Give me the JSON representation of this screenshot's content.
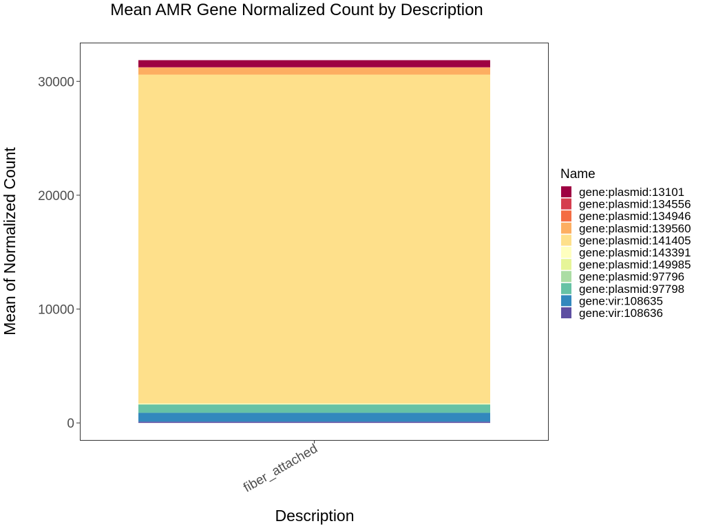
{
  "chart_data": {
    "type": "bar",
    "stacked": true,
    "title": "Mean AMR Gene Normalized Count by Description",
    "xlabel": "Description",
    "ylabel": "Mean of Normalized Count",
    "categories": [
      "fiber_attached"
    ],
    "ylim": [
      -1500,
      33400
    ],
    "y_ticks": [
      0,
      10000,
      20000,
      30000
    ],
    "grid": false,
    "legend": {
      "title": "Name",
      "position": "right"
    },
    "series": [
      {
        "name": "gene:plasmid:13101",
        "color": "#9E0142",
        "values": [
          620
        ]
      },
      {
        "name": "gene:plasmid:134556",
        "color": "#D53E4F",
        "values": [
          15
        ]
      },
      {
        "name": "gene:plasmid:134946",
        "color": "#F46D43",
        "values": [
          15
        ]
      },
      {
        "name": "gene:plasmid:139560",
        "color": "#FDAE61",
        "values": [
          620
        ]
      },
      {
        "name": "gene:plasmid:141405",
        "color": "#FEE08B",
        "values": [
          28880
        ]
      },
      {
        "name": "gene:plasmid:143391",
        "color": "#FFFFBF",
        "values": [
          60
        ]
      },
      {
        "name": "gene:plasmid:149985",
        "color": "#E6F598",
        "values": [
          20
        ]
      },
      {
        "name": "gene:plasmid:97796",
        "color": "#ABDDA4",
        "values": [
          20
        ]
      },
      {
        "name": "gene:plasmid:97798",
        "color": "#66C2A5",
        "values": [
          720
        ]
      },
      {
        "name": "gene:vir:108635",
        "color": "#3288BD",
        "values": [
          780
        ]
      },
      {
        "name": "gene:vir:108636",
        "color": "#5E4FA2",
        "values": [
          110
        ]
      }
    ]
  }
}
